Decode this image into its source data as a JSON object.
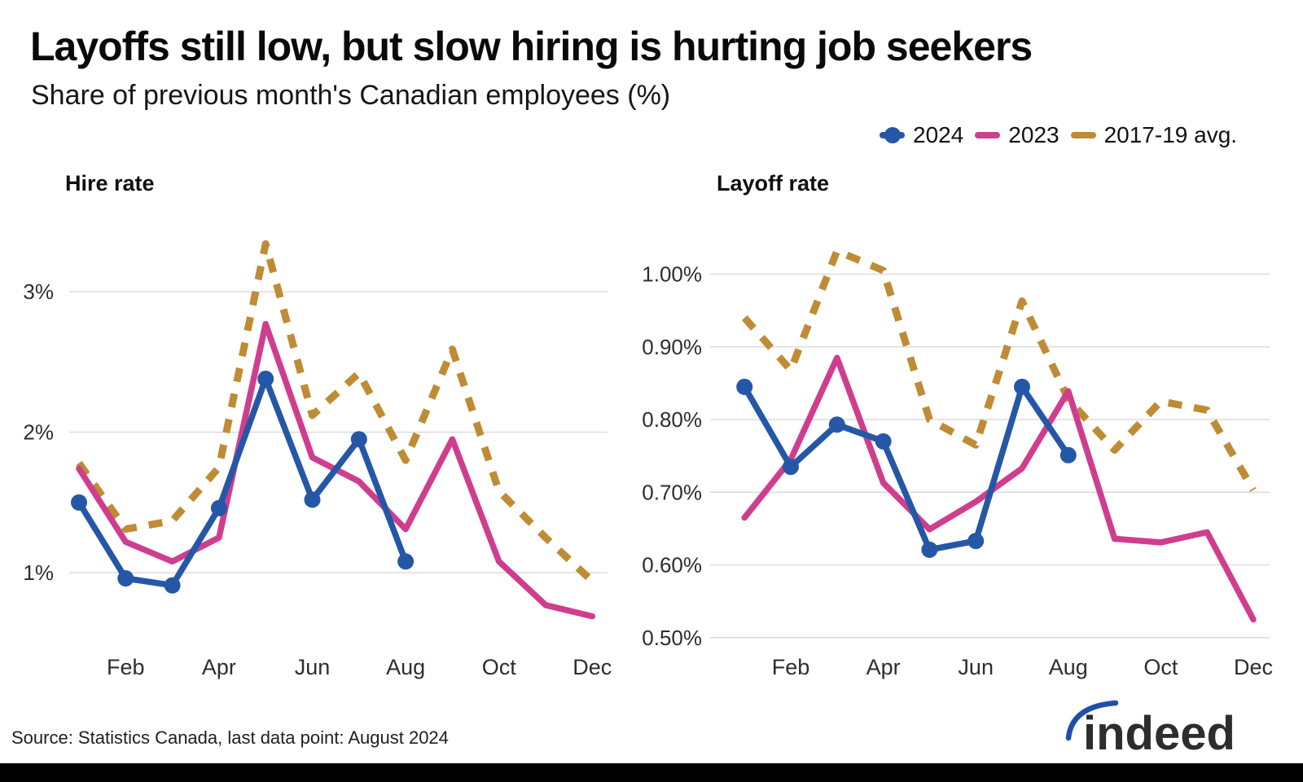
{
  "page": {
    "title": "Layoffs still low, but slow hiring is hurting job seekers",
    "subtitle": "Share of previous month's Canadian employees (%)",
    "source": "Source: Statistics Canada, last data point: August 2024",
    "logo_text": "indeed"
  },
  "colors": {
    "series_2024": "#2557a7",
    "series_2023": "#cf3e8e",
    "series_avg": "#bf8c35",
    "gridline": "#d9d9d9",
    "logo_blue": "#1f4fa8"
  },
  "legend": [
    {
      "label": "2024",
      "color_key": "series_2024",
      "marker": "line-dot"
    },
    {
      "label": "2023",
      "color_key": "series_2023",
      "marker": "line"
    },
    {
      "label": "2017-19 avg.",
      "color_key": "series_avg",
      "marker": "dashed-line"
    }
  ],
  "chart_data": [
    {
      "type": "line",
      "title": "Hire rate",
      "unit": "%",
      "x_months": [
        "Jan",
        "Feb",
        "Mar",
        "Apr",
        "May",
        "Jun",
        "Jul",
        "Aug",
        "Sep",
        "Oct",
        "Nov",
        "Dec"
      ],
      "x_tick_labels": [
        "Feb",
        "Apr",
        "Jun",
        "Aug",
        "Oct",
        "Dec"
      ],
      "x_tick_month_indices": [
        1,
        3,
        5,
        7,
        9,
        11
      ],
      "y_ticks": [
        {
          "label": "3%",
          "value": 3
        },
        {
          "label": "2%",
          "value": 2
        },
        {
          "label": "1%",
          "value": 1
        }
      ],
      "ylim": [
        0.45,
        3.58
      ],
      "grid": true,
      "legend_position": "top-right",
      "series": [
        {
          "name": "2024",
          "color_key": "series_2024",
          "style": "solid",
          "markers": true,
          "values": [
            1.5,
            0.96,
            0.91,
            1.46,
            2.38,
            1.52,
            1.95,
            1.08,
            null,
            null,
            null,
            null
          ]
        },
        {
          "name": "2023",
          "color_key": "series_2023",
          "style": "solid",
          "markers": false,
          "values": [
            1.74,
            1.22,
            1.08,
            1.25,
            2.77,
            1.82,
            1.65,
            1.31,
            1.95,
            1.08,
            0.77,
            0.69
          ]
        },
        {
          "name": "2017-19 avg.",
          "color_key": "series_avg",
          "style": "dashed",
          "markers": false,
          "values": [
            1.78,
            1.31,
            1.37,
            1.75,
            3.34,
            2.12,
            2.42,
            1.8,
            2.59,
            1.58,
            1.25,
            0.94
          ]
        }
      ]
    },
    {
      "type": "line",
      "title": "Layoff rate",
      "unit": "%",
      "x_months": [
        "Jan",
        "Feb",
        "Mar",
        "Apr",
        "May",
        "Jun",
        "Jul",
        "Aug",
        "Sep",
        "Oct",
        "Nov",
        "Dec"
      ],
      "x_tick_labels": [
        "Feb",
        "Apr",
        "Jun",
        "Aug",
        "Oct",
        "Dec"
      ],
      "x_tick_month_indices": [
        1,
        3,
        5,
        7,
        9,
        11
      ],
      "y_ticks": [
        {
          "label": "1.00%",
          "value": 1.0
        },
        {
          "label": "0.90%",
          "value": 0.9
        },
        {
          "label": "0.80%",
          "value": 0.8
        },
        {
          "label": "0.70%",
          "value": 0.7
        },
        {
          "label": "0.60%",
          "value": 0.6
        },
        {
          "label": "0.50%",
          "value": 0.5
        }
      ],
      "ylim": [
        0.483,
        1.088
      ],
      "grid": true,
      "legend_position": "top-right",
      "series": [
        {
          "name": "2024",
          "color_key": "series_2024",
          "style": "solid",
          "markers": true,
          "values": [
            0.845,
            0.735,
            0.793,
            0.77,
            0.621,
            0.633,
            0.845,
            0.751,
            null,
            null,
            null,
            null
          ]
        },
        {
          "name": "2023",
          "color_key": "series_2023",
          "style": "solid",
          "markers": false,
          "values": [
            0.665,
            0.745,
            0.885,
            0.713,
            0.649,
            0.687,
            0.733,
            0.839,
            0.636,
            0.631,
            0.645,
            0.525
          ]
        },
        {
          "name": "2017-19 avg.",
          "color_key": "series_avg",
          "style": "dashed",
          "markers": false,
          "values": [
            0.94,
            0.868,
            1.032,
            1.005,
            0.8,
            0.765,
            0.963,
            0.828,
            0.758,
            0.825,
            0.813,
            0.703
          ]
        }
      ]
    }
  ]
}
